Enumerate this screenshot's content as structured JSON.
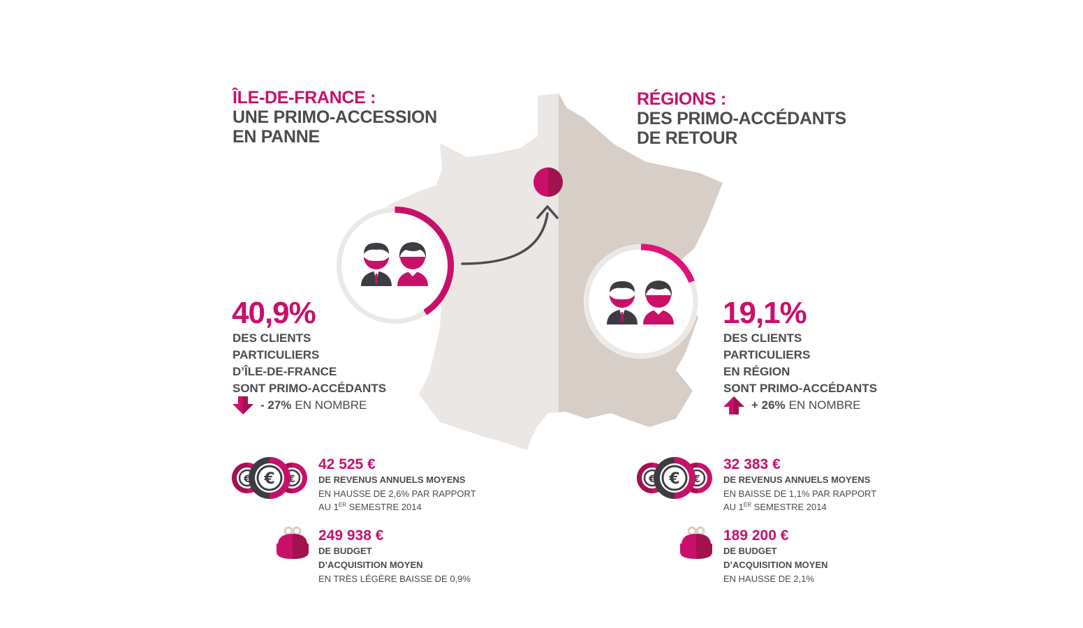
{
  "left": {
    "title_accent": "ÎLE-DE-FRANCE :",
    "title_line2": "UNE PRIMO-ACCESSION",
    "title_line3": "EN PANNE",
    "percent": "40,9%",
    "percent_value": 40.9,
    "desc_lines": [
      "DES CLIENTS",
      "PARTICULIERS",
      "D’ÎLE-DE-FRANCE",
      "SONT PRIMO-ACCÉDANTS"
    ],
    "change_value": "- 27%",
    "change_label": "EN NOMBRE",
    "change_direction": "down",
    "income_amount": "42 525 €",
    "income_label": "DE REVENUS ANNUELS MOYENS",
    "income_note_line1": "EN HAUSSE DE 2,6% PAR RAPPORT",
    "income_note_pre": "AU 1",
    "income_note_sup": "ER",
    "income_note_post": " SEMESTRE 2014",
    "budget_amount": "249 938 €",
    "budget_label_line1": "DE BUDGET",
    "budget_label_line2": "D’ACQUISITION MOYEN",
    "budget_note": "EN TRÈS LÉGÈRE BAISSE DE 0,9%"
  },
  "right": {
    "title_accent": "RÉGIONS :",
    "title_line2": "DES PRIMO-ACCÉDANTS",
    "title_line3": "DE RETOUR",
    "percent": "19,1%",
    "percent_value": 19.1,
    "desc_lines": [
      "DES CLIENTS",
      "PARTICULIERS",
      "EN RÉGION",
      "SONT PRIMO-ACCÉDANTS"
    ],
    "change_value": "+ 26%",
    "change_label": "EN NOMBRE",
    "change_direction": "up",
    "income_amount": "32 383 €",
    "income_label": "DE REVENUS ANNUELS MOYENS",
    "income_note_line1": "EN BAISSE DE 1,1% PAR RAPPORT",
    "income_note_pre": "AU 1",
    "income_note_sup": "ER",
    "income_note_post": " SEMESTRE 2014",
    "budget_amount": "189 200 €",
    "budget_label_line1": "DE BUDGET",
    "budget_label_line2": "D’ACQUISITION MOYEN",
    "budget_note": "EN HAUSSE DE 2,1%"
  },
  "colors": {
    "accent": "#c8106b",
    "accent_dark": "#a3124f",
    "text": "#4b4b50",
    "map_left": "#ebe7e4",
    "map_right": "#d6cec7",
    "ring_track": "#ece8e5"
  },
  "icons": {
    "people": "two-people-icon",
    "coins": "euro-coins-icon",
    "purse": "purse-icon",
    "arrow_down": "arrow-down-icon",
    "arrow_up": "arrow-up-icon",
    "paris": "paris-marker-icon"
  }
}
